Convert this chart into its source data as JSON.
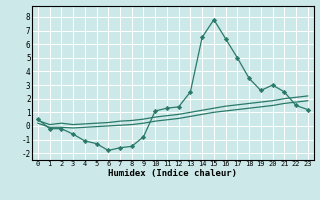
{
  "xlabel": "Humidex (Indice chaleur)",
  "xlim": [
    -0.5,
    23.5
  ],
  "ylim": [
    -2.5,
    8.8
  ],
  "xticks": [
    0,
    1,
    2,
    3,
    4,
    5,
    6,
    7,
    8,
    9,
    10,
    11,
    12,
    13,
    14,
    15,
    16,
    17,
    18,
    19,
    20,
    21,
    22,
    23
  ],
  "yticks": [
    -2,
    -1,
    0,
    1,
    2,
    3,
    4,
    5,
    6,
    7,
    8
  ],
  "line_color": "#2a7a6a",
  "bg_color": "#cce8e8",
  "grid_color": "#b8d8d8",
  "line1_y": [
    0.5,
    -0.2,
    -0.2,
    -0.6,
    -1.1,
    -1.3,
    -1.8,
    -1.6,
    -1.5,
    -0.8,
    1.1,
    1.3,
    1.4,
    2.5,
    6.5,
    7.8,
    6.4,
    5.0,
    3.5,
    2.6,
    3.0,
    2.5,
    1.5,
    1.2
  ],
  "line2_y": [
    0.4,
    0.1,
    0.2,
    0.1,
    0.15,
    0.2,
    0.25,
    0.35,
    0.4,
    0.5,
    0.65,
    0.75,
    0.85,
    1.0,
    1.15,
    1.3,
    1.45,
    1.55,
    1.65,
    1.75,
    1.85,
    2.0,
    2.1,
    2.2
  ],
  "line3_y": [
    0.2,
    -0.1,
    -0.1,
    -0.15,
    -0.1,
    -0.05,
    0.0,
    0.05,
    0.1,
    0.2,
    0.35,
    0.45,
    0.55,
    0.7,
    0.85,
    1.0,
    1.1,
    1.2,
    1.3,
    1.4,
    1.5,
    1.65,
    1.75,
    1.85
  ]
}
